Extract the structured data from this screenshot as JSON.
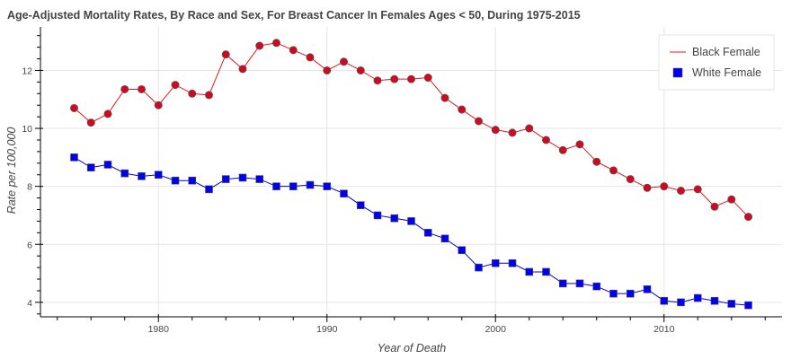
{
  "chart_data": {
    "type": "line",
    "title": "Age-Adjusted Mortality Rates, By Race and Sex, For Breast Cancer In Females  Ages < 50, During 1975-2015",
    "xlabel": "Year of Death",
    "ylabel": "Rate per 100,000",
    "xlim": [
      1973,
      2017
    ],
    "ylim": [
      3.5,
      13.5
    ],
    "x_ticks": [
      1980,
      1990,
      2000,
      2010
    ],
    "y_ticks": [
      4,
      6,
      8,
      10,
      12
    ],
    "grid": true,
    "legend_position": "top-right",
    "x": [
      1975,
      1976,
      1977,
      1978,
      1979,
      1980,
      1981,
      1982,
      1983,
      1984,
      1985,
      1986,
      1987,
      1988,
      1989,
      1990,
      1991,
      1992,
      1993,
      1994,
      1995,
      1996,
      1997,
      1998,
      1999,
      2000,
      2001,
      2002,
      2003,
      2004,
      2005,
      2006,
      2007,
      2008,
      2009,
      2010,
      2011,
      2012,
      2013,
      2014,
      2015
    ],
    "series": [
      {
        "name": "Black Female",
        "marker": "circle",
        "line_color": "#e41a1c",
        "marker_fill": "#e0001b",
        "marker_stroke": "#555555",
        "values": [
          10.7,
          10.2,
          10.5,
          11.35,
          11.35,
          10.8,
          11.5,
          11.2,
          11.15,
          12.55,
          12.05,
          12.85,
          12.95,
          12.7,
          12.45,
          12.0,
          12.3,
          12.0,
          11.65,
          11.7,
          11.7,
          11.75,
          11.05,
          10.65,
          10.25,
          9.95,
          9.85,
          10.0,
          9.6,
          9.25,
          9.45,
          8.85,
          8.55,
          8.25,
          7.95,
          8.0,
          7.85,
          7.9,
          7.3,
          7.55,
          6.95
        ]
      },
      {
        "name": "White Female",
        "marker": "square",
        "line_color": "#0000cc",
        "marker_fill": "#0000ee",
        "marker_stroke": "#555555",
        "values": [
          9.0,
          8.65,
          8.75,
          8.45,
          8.35,
          8.4,
          8.2,
          8.2,
          7.9,
          8.25,
          8.3,
          8.25,
          8.0,
          8.0,
          8.05,
          8.0,
          7.75,
          7.35,
          7.0,
          6.9,
          6.8,
          6.4,
          6.2,
          5.8,
          5.2,
          5.35,
          5.35,
          5.05,
          5.05,
          4.65,
          4.65,
          4.55,
          4.3,
          4.3,
          4.45,
          4.05,
          4.0,
          4.15,
          4.05,
          3.95,
          3.9
        ]
      }
    ]
  }
}
